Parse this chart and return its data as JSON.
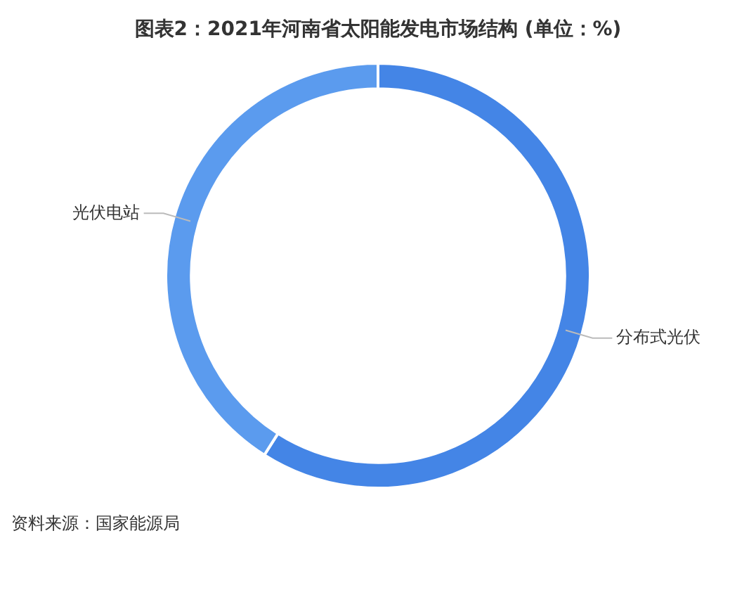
{
  "chart_data": {
    "type": "donut",
    "title": "图表2：2021年河南省太阳能发电市场结构 (单位：%)",
    "categories": [
      "分布式光伏",
      "光伏电站"
    ],
    "values": [
      59,
      41
    ],
    "colors": [
      "#4485e6",
      "#5b9bee"
    ],
    "legend": false,
    "annotations": [
      "资料来源：国家能源局"
    ]
  }
}
